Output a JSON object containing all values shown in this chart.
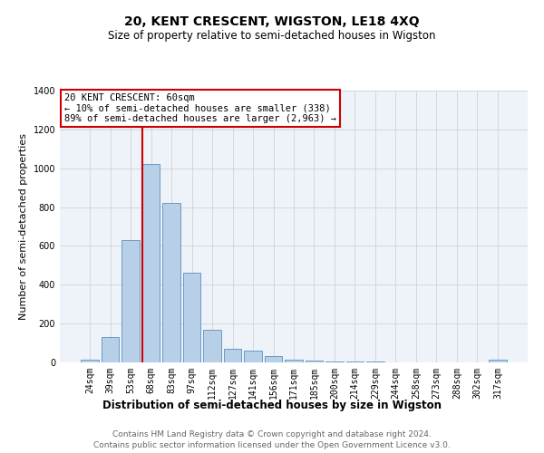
{
  "title": "20, KENT CRESCENT, WIGSTON, LE18 4XQ",
  "subtitle": "Size of property relative to semi-detached houses in Wigston",
  "xlabel": "Distribution of semi-detached houses by size in Wigston",
  "ylabel": "Number of semi-detached properties",
  "footnote1": "Contains HM Land Registry data © Crown copyright and database right 2024.",
  "footnote2": "Contains public sector information licensed under the Open Government Licence v3.0.",
  "annotation_line1": "20 KENT CRESCENT: 60sqm",
  "annotation_line2": "← 10% of semi-detached houses are smaller (338)",
  "annotation_line3": "89% of semi-detached houses are larger (2,963) →",
  "bar_categories": [
    "24sqm",
    "39sqm",
    "53sqm",
    "68sqm",
    "83sqm",
    "97sqm",
    "112sqm",
    "127sqm",
    "141sqm",
    "156sqm",
    "171sqm",
    "185sqm",
    "200sqm",
    "214sqm",
    "229sqm",
    "244sqm",
    "258sqm",
    "273sqm",
    "288sqm",
    "302sqm",
    "317sqm"
  ],
  "bar_values": [
    15,
    130,
    630,
    1020,
    820,
    460,
    170,
    70,
    60,
    35,
    15,
    10,
    7,
    5,
    3,
    2,
    2,
    1,
    1,
    1,
    15
  ],
  "bar_color": "#b8cfe8",
  "bar_edge_color": "#5a8fc0",
  "red_line_index": 3,
  "red_line_color": "#cc0000",
  "ylim": [
    0,
    1400
  ],
  "yticks": [
    0,
    200,
    400,
    600,
    800,
    1000,
    1200,
    1400
  ],
  "grid_color": "#cccccc",
  "background_color": "#eef2f9",
  "box_edge_color": "#cc0000",
  "title_fontsize": 10,
  "subtitle_fontsize": 8.5,
  "xlabel_fontsize": 8.5,
  "ylabel_fontsize": 8,
  "annotation_fontsize": 7.5,
  "tick_fontsize": 7,
  "footnote_fontsize": 6.5
}
